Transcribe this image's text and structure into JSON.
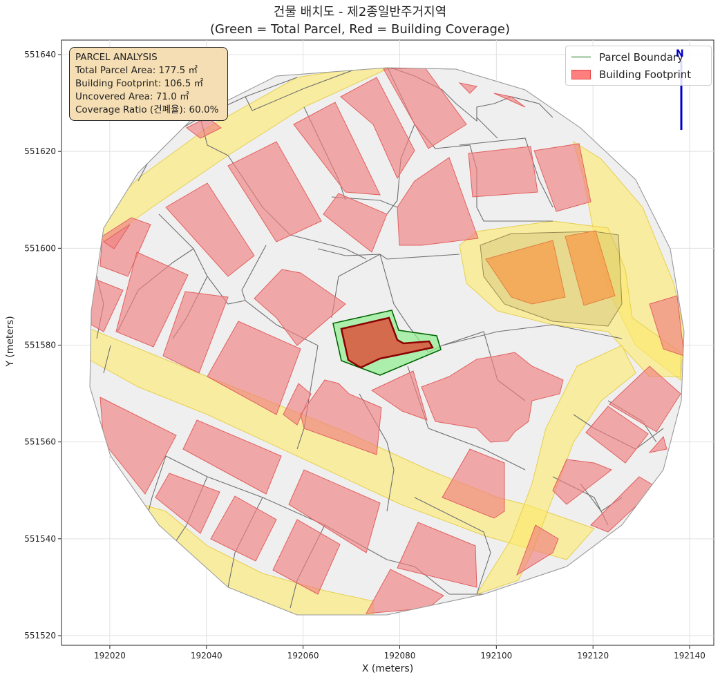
{
  "title": {
    "line1": "건물 배치도 - 제2종일반주거지역",
    "line2": "(Green = Total Parcel, Red = Building Coverage)"
  },
  "axes": {
    "xlabel": "X (meters)",
    "ylabel": "Y (meters)",
    "x_ticks": [
      "192020",
      "192040",
      "192060",
      "192080",
      "192100",
      "192120",
      "192140"
    ],
    "y_ticks": [
      "551520",
      "551540",
      "551560",
      "551580",
      "551600",
      "551620",
      "551640"
    ],
    "xlim": [
      192010,
      192145
    ],
    "ylim": [
      551518,
      551643
    ],
    "grid": true
  },
  "info_box": {
    "header": "PARCEL ANALYSIS",
    "line1": "Total Parcel Area: 177.5 ㎡",
    "line2": "Building Footprint: 106.5 ㎡",
    "line3": "Uncovered Area: 71.0 ㎡",
    "line4": "Coverage Ratio (건폐율): 60.0%"
  },
  "legend": {
    "placement": "top-right",
    "items": [
      {
        "label": "Parcel Boundary",
        "color": "#006400"
      },
      {
        "label": "Building Footprint",
        "color": "#ff0000"
      }
    ]
  },
  "north_arrow": {
    "label": "N",
    "color": "#0000cc"
  },
  "colors": {
    "road": "#fde96b",
    "parcel_fill": "#efefef",
    "building": "#f08080",
    "target_parcel": "#90ee90",
    "target_building": "#b22222"
  },
  "chart_data": {
    "type": "map",
    "parcel_analysis": {
      "total_parcel_area_m2": 177.5,
      "building_footprint_m2": 106.5,
      "uncovered_area_m2": 71.0,
      "coverage_ratio_pct": 60.0
    },
    "target_parcel_xy": [
      [
        192067,
        551585
      ],
      [
        192077,
        551587
      ],
      [
        192079,
        551583
      ],
      [
        192085,
        551582
      ],
      [
        192088,
        551580
      ],
      [
        192076,
        551577
      ],
      [
        192070,
        551574
      ]
    ],
    "target_building_xy": [
      [
        192068.5,
        551583.5
      ],
      [
        192076,
        551586
      ],
      [
        192078,
        551582
      ],
      [
        192081,
        551581
      ],
      [
        192086,
        551581
      ],
      [
        192087,
        551580
      ],
      [
        192078,
        551578
      ],
      [
        192075,
        551576
      ],
      [
        192072,
        551575
      ],
      [
        192070,
        551577
      ]
    ]
  }
}
